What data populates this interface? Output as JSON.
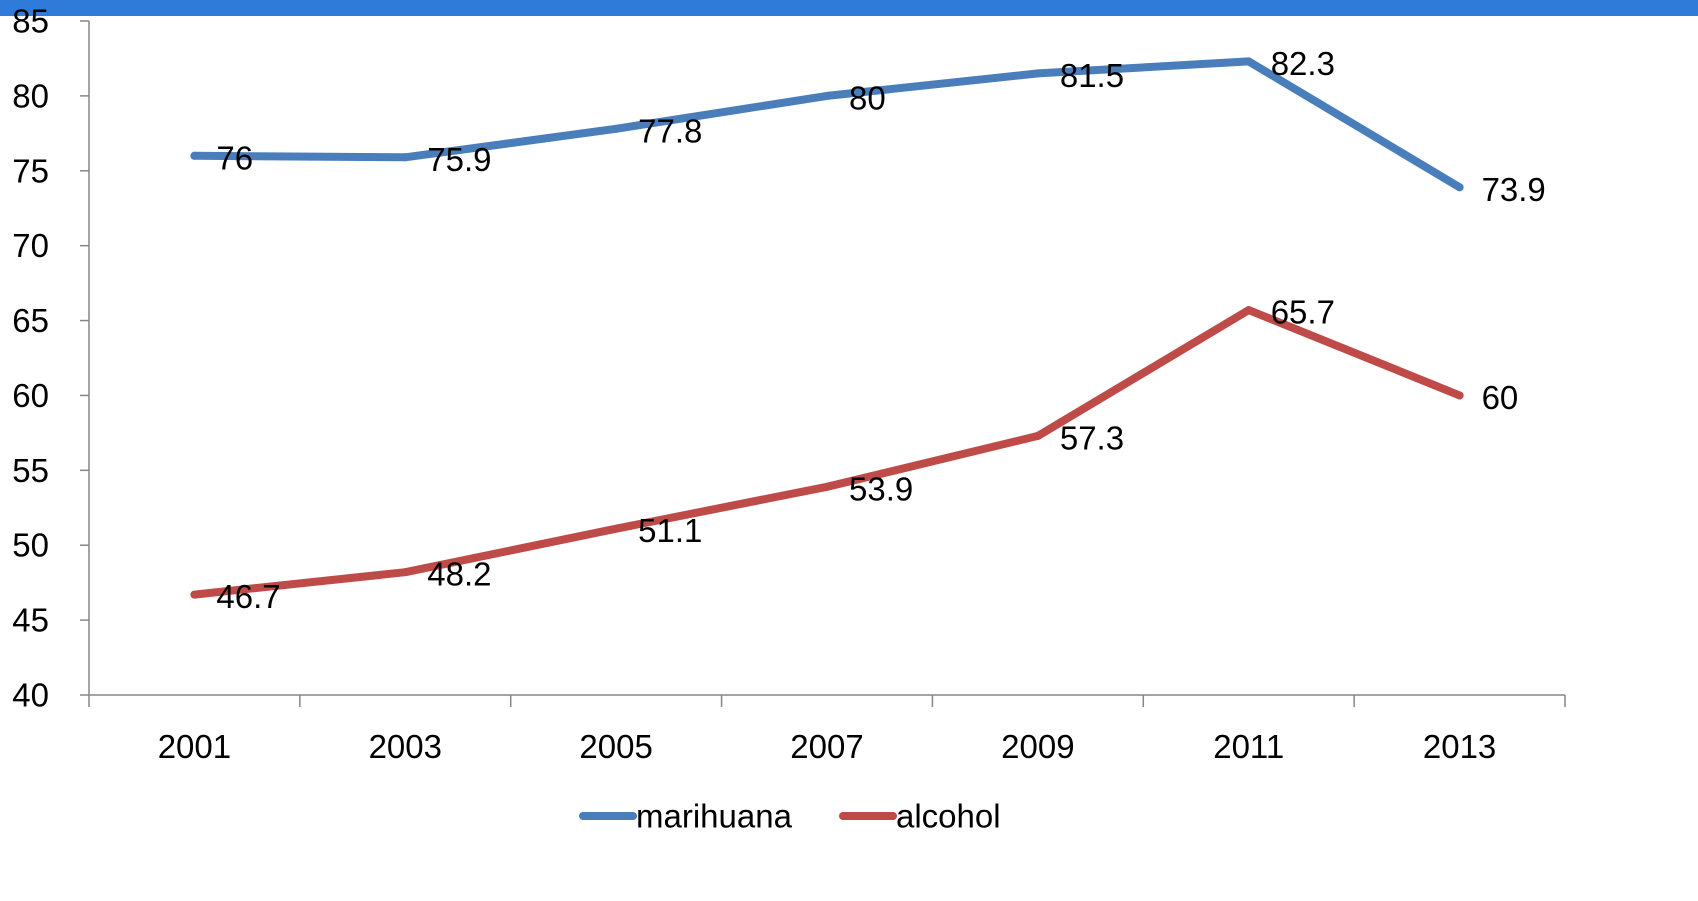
{
  "colors": {
    "top_bar": "#2e7bd9",
    "axis": "#868686"
  },
  "chart_data": {
    "type": "line",
    "categories": [
      "2001",
      "2003",
      "2005",
      "2007",
      "2009",
      "2011",
      "2013"
    ],
    "series": [
      {
        "name": "marihuana",
        "color": "#4a7ebb",
        "values": [
          76,
          75.9,
          77.8,
          80,
          81.5,
          82.3,
          73.9
        ]
      },
      {
        "name": "alcohol",
        "color": "#be4b48",
        "values": [
          46.7,
          48.2,
          51.1,
          53.9,
          57.3,
          65.7,
          60
        ]
      }
    ],
    "data_labels": {
      "marihuana": [
        "76",
        "75.9",
        "77.8",
        "80",
        "81.5",
        "82.3",
        "73.9"
      ],
      "alcohol": [
        "46.7",
        "48.2",
        "51.1",
        "53.9",
        "57.3",
        "65.7",
        "60"
      ]
    },
    "ylim": [
      40,
      85
    ],
    "yticks": [
      "40",
      "45",
      "50",
      "55",
      "60",
      "65",
      "70",
      "75",
      "80",
      "85"
    ],
    "title": "",
    "xlabel": "",
    "ylabel": "",
    "grid": false,
    "legend": {
      "position": "bottom",
      "entries": [
        "marihuana",
        "alcohol"
      ]
    }
  }
}
